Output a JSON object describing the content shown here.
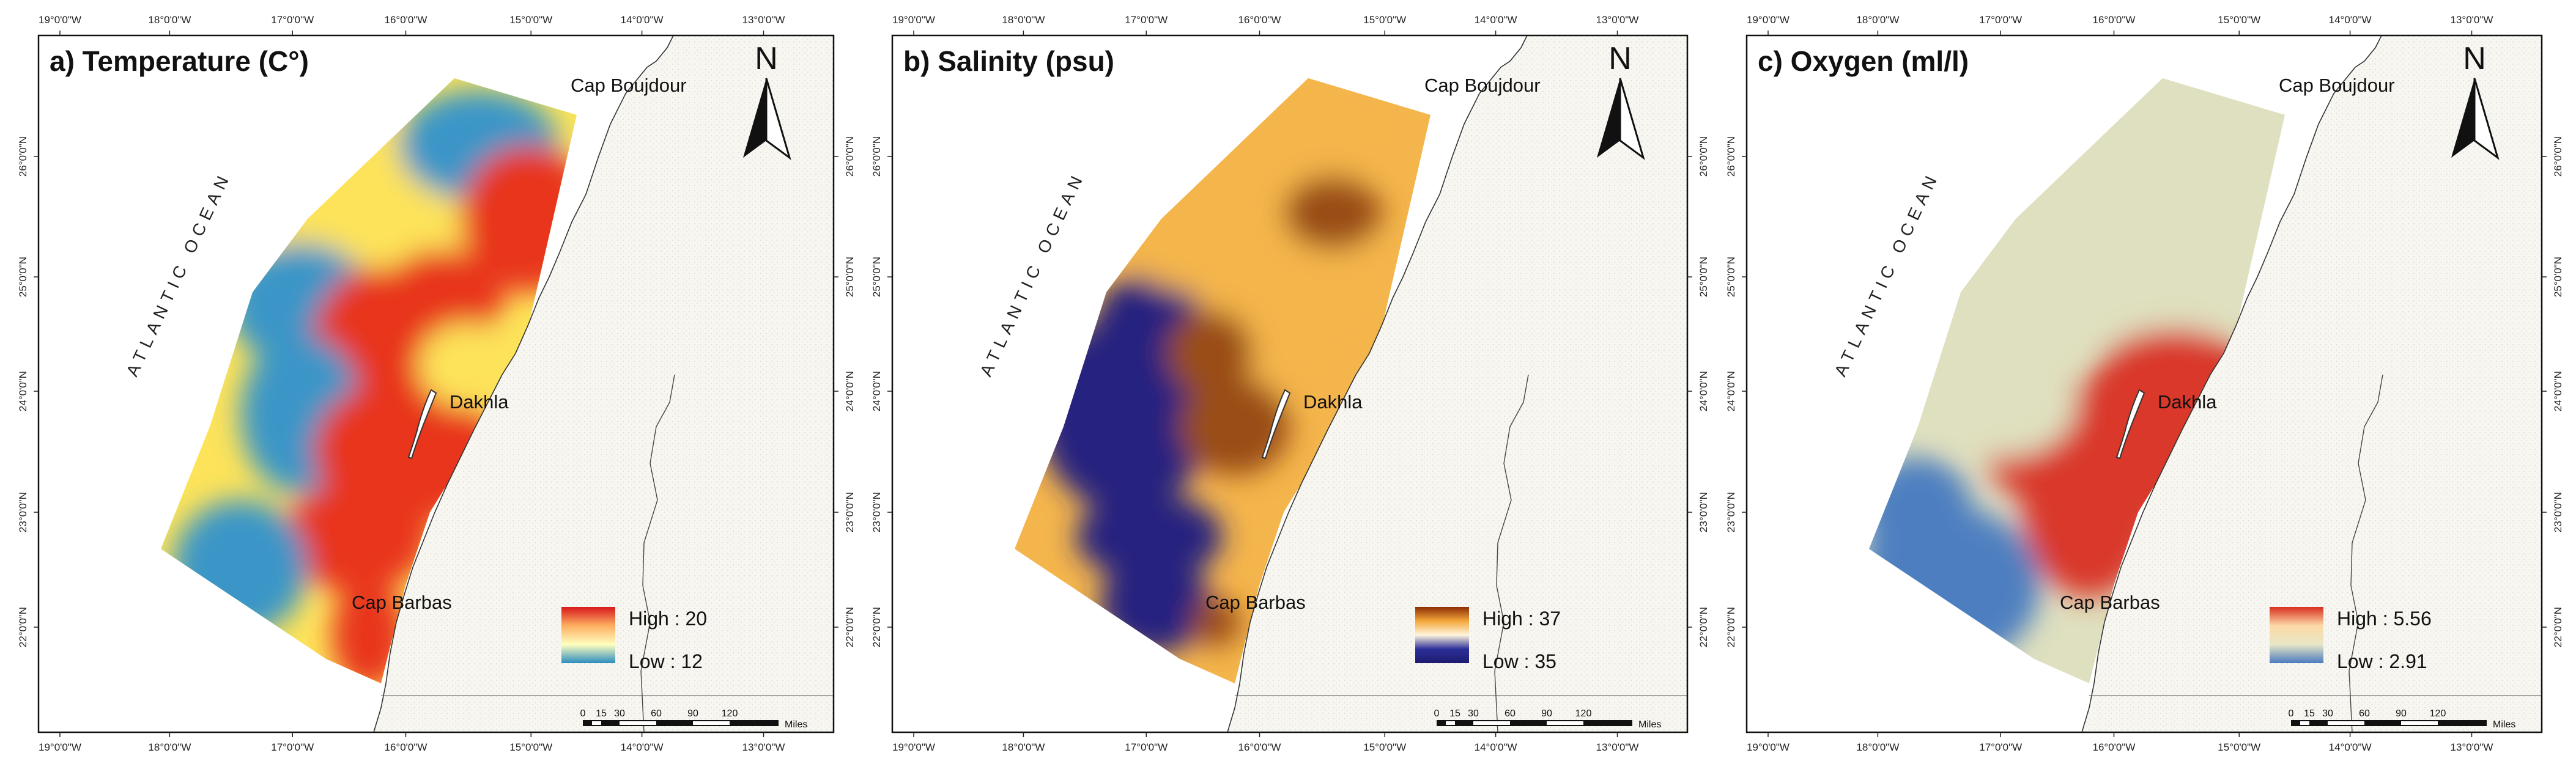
{
  "panels": [
    {
      "id": "temperature",
      "title": "a) Temperature (C°)",
      "variable": "temperature",
      "legend": {
        "high_label": "High : 20",
        "low_label": "Low : 12",
        "ramp_colors": [
          "#d7191c",
          "#fdae61",
          "#ffffbf",
          "#2b8cbe"
        ]
      },
      "surface": {
        "colors": {
          "low": "#3a96c7",
          "mid": "#fde35a",
          "high": "#e8341c"
        }
      },
      "places": [
        "Cap Boujdour",
        "Dakhla",
        "Cap Barbas"
      ],
      "ocean_label": "ATLANTIC OCEAN",
      "north_label": "N",
      "scale": {
        "ticks": [
          "0",
          "15",
          "30",
          "60",
          "90",
          "120"
        ],
        "unit": "Miles"
      },
      "lon_labels": [
        "19°0'0\"W",
        "18°0'0\"W",
        "17°0'0\"W",
        "16°0'0\"W",
        "15°0'0\"W",
        "14°0'0\"W",
        "13°0'0\"W"
      ],
      "lat_labels": [
        "26°0'0\"N",
        "25°0'0\"N",
        "24°0'0\"N",
        "23°0'0\"N",
        "22°0'0\"N"
      ]
    },
    {
      "id": "salinity",
      "title": "b) Salinity (psu)",
      "variable": "salinity",
      "legend": {
        "high_label": "High : 37",
        "low_label": "Low : 35",
        "ramp_colors": [
          "#8c2d04",
          "#f3a73a",
          "#fff5dc",
          "#2c2f9a",
          "#1d1b6e"
        ]
      },
      "surface": {
        "colors": {
          "low": "#26237f",
          "mid": "#f4b54c",
          "high": "#9a4d12"
        }
      },
      "places": [
        "Cap Boujdour",
        "Dakhla",
        "Cap Barbas"
      ],
      "ocean_label": "ATLANTIC OCEAN",
      "north_label": "N",
      "scale": {
        "ticks": [
          "0",
          "15",
          "30",
          "60",
          "90",
          "120"
        ],
        "unit": "Miles"
      },
      "lon_labels": [
        "19°0'0\"W",
        "18°0'0\"W",
        "17°0'0\"W",
        "16°0'0\"W",
        "15°0'0\"W",
        "14°0'0\"W",
        "13°0'0\"W"
      ],
      "lat_labels": [
        "26°0'0\"N",
        "25°0'0\"N",
        "24°0'0\"N",
        "23°0'0\"N",
        "22°0'0\"N"
      ]
    },
    {
      "id": "oxygen",
      "title": "c) Oxygen (ml/l)",
      "variable": "oxygen",
      "legend": {
        "high_label": "High : 5.56",
        "low_label": "Low : 2.91",
        "ramp_colors": [
          "#d7301f",
          "#fdd9a6",
          "#e8e6c6",
          "#4a7bbf"
        ]
      },
      "surface": {
        "colors": {
          "low": "#4d7fc0",
          "mid": "#dfe0bf",
          "high": "#d9372a"
        }
      },
      "places": [
        "Cap Boujdour",
        "Dakhla",
        "Cap Barbas"
      ],
      "ocean_label": "ATLANTIC OCEAN",
      "north_label": "N",
      "scale": {
        "ticks": [
          "0",
          "15",
          "30",
          "60",
          "90",
          "120"
        ],
        "unit": "Miles"
      },
      "lon_labels": [
        "19°0'0\"W",
        "18°0'0\"W",
        "17°0'0\"W",
        "16°0'0\"W",
        "15°0'0\"W",
        "14°0'0\"W",
        "13°0'0\"W"
      ],
      "lat_labels": [
        "26°0'0\"N",
        "25°0'0\"N",
        "24°0'0\"N",
        "23°0'0\"N",
        "22°0'0\"N"
      ]
    }
  ]
}
